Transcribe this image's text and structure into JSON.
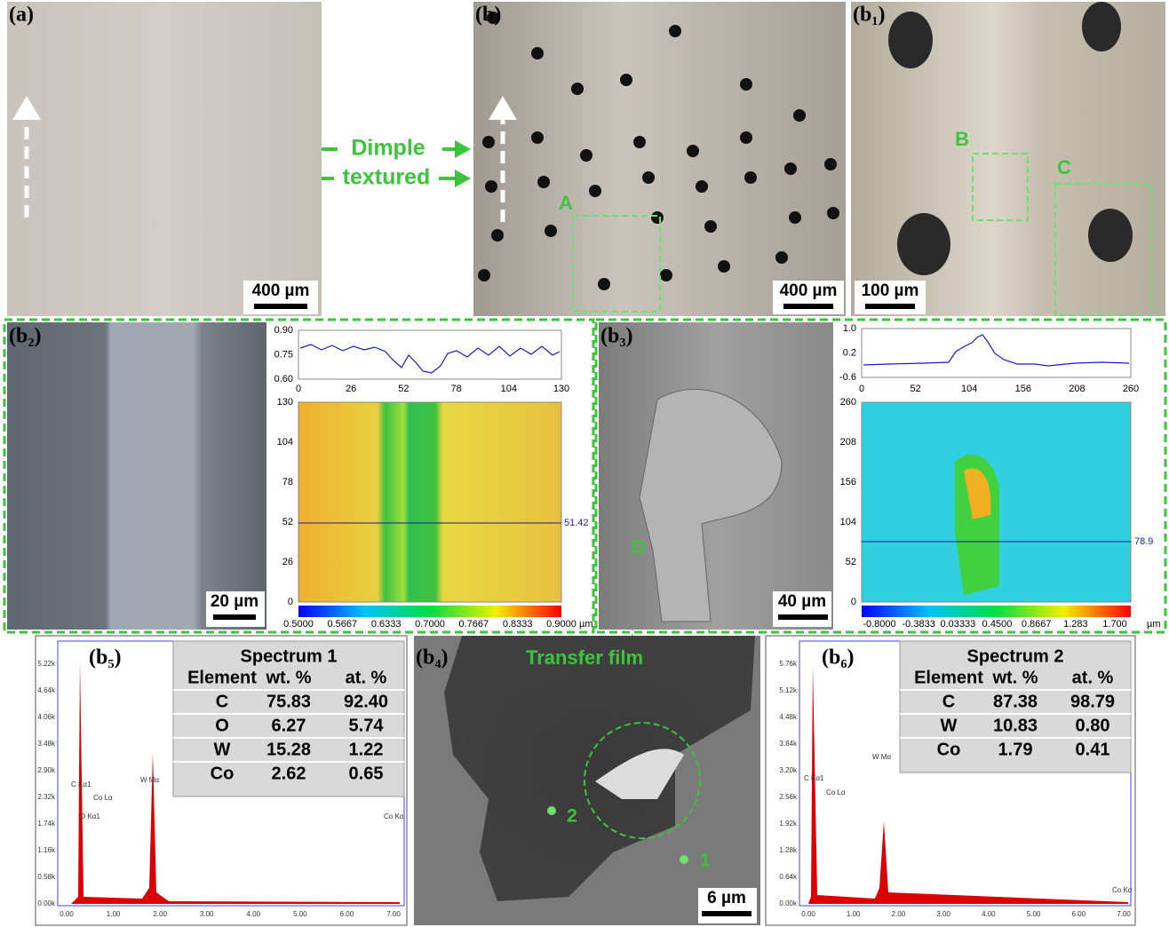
{
  "top": {
    "a_label": "(a)",
    "a_scale": "400 µm",
    "arrow_text": [
      "Dimple",
      "textured"
    ],
    "b_label": "(b)",
    "b_scale": "400 µm",
    "region_a": "A",
    "b1_label": "(b₁)",
    "b1_scale": "100 µm",
    "region_b": "B",
    "region_c": "C"
  },
  "b2": {
    "label": "(b₂)",
    "scale": "20 µm",
    "profile_yticks": [
      "0.90",
      "0.75",
      "0.60"
    ],
    "xticks": [
      "0",
      "26",
      "52",
      "78",
      "104",
      "130"
    ],
    "map_yticks": [
      "130",
      "104",
      "78",
      "52",
      "26",
      "0"
    ],
    "line_value": "51.42",
    "colorbar": [
      "0.5000",
      "0.5667",
      "0.6333",
      "0.7000",
      "0.7667",
      "0.8333",
      "0.9000"
    ],
    "unit": "µm"
  },
  "b3": {
    "label": "(b₃)",
    "scale": "40 µm",
    "region": "D",
    "profile_yticks": [
      "1.0",
      "0.2",
      "-0.6"
    ],
    "xticks": [
      "0",
      "52",
      "104",
      "156",
      "208",
      "260"
    ],
    "map_yticks": [
      "260",
      "208",
      "156",
      "104",
      "52",
      "0"
    ],
    "line_value": "78.9",
    "colorbar": [
      "-0.8000",
      "-0.3833",
      "0.03333",
      "0.4500",
      "0.8667",
      "1.283",
      "1.700"
    ],
    "unit": "µm"
  },
  "b5": {
    "label": "(b₅)",
    "yticks": [
      "5.22k",
      "4.64k",
      "4.06k",
      "3.48k",
      "2.90k",
      "2.32k",
      "1.74k",
      "1.16k",
      "0.58k",
      "0.00k"
    ],
    "xticks": [
      "0.00",
      "1.00",
      "2.00",
      "3.00",
      "4.00",
      "5.00",
      "6.00",
      "7.00"
    ],
    "peaks": [
      "C Kα1",
      "Co Lα",
      "O Kα1",
      "W Mα",
      "Co Kα"
    ],
    "table": {
      "title": "Spectrum 1",
      "header": [
        "Element",
        "wt. %",
        "at. %"
      ],
      "rows": [
        [
          "C",
          "75.83",
          "92.40"
        ],
        [
          "O",
          "6.27",
          "5.74"
        ],
        [
          "W",
          "15.28",
          "1.22"
        ],
        [
          "Co",
          "2.62",
          "0.65"
        ]
      ]
    }
  },
  "b4": {
    "label": "(b₄)",
    "title": "Transfer film",
    "points": [
      "2",
      "1"
    ],
    "scale": "6 µm"
  },
  "b6": {
    "label": "(b₆)",
    "yticks": [
      "5.76k",
      "5.12k",
      "4.48k",
      "3.84k",
      "3.20k",
      "2.56k",
      "1.92k",
      "1.28k",
      "0.64k",
      "0.00k"
    ],
    "xticks": [
      "0.00",
      "1.00",
      "2.00",
      "3.00",
      "4.00",
      "5.00",
      "6.00",
      "7.00"
    ],
    "peaks": [
      "C Kα1",
      "Co Lα",
      "W Mα",
      "Co Kα"
    ],
    "table": {
      "title": "Spectrum 2",
      "header": [
        "Element",
        "wt. %",
        "at. %"
      ],
      "rows": [
        [
          "C",
          "87.38",
          "98.79"
        ],
        [
          "W",
          "10.83",
          "0.80"
        ],
        [
          "Co",
          "1.79",
          "0.41"
        ]
      ]
    }
  }
}
